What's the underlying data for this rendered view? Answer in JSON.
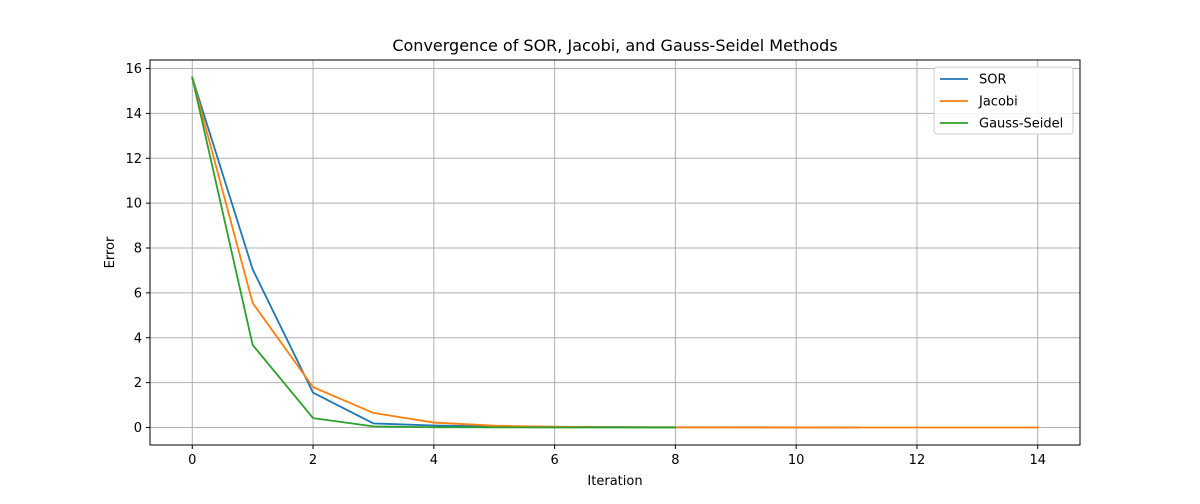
{
  "chart_data": {
    "type": "line",
    "title": "Convergence of SOR, Jacobi, and Gauss-Seidel Methods",
    "xlabel": "Iteration",
    "ylabel": "Error",
    "xlim": [
      -0.7,
      14.7
    ],
    "ylim": [
      -0.78,
      16.38
    ],
    "xticks": [
      0,
      2,
      4,
      6,
      8,
      10,
      12,
      14
    ],
    "yticks": [
      0,
      2,
      4,
      6,
      8,
      10,
      12,
      14,
      16
    ],
    "grid": true,
    "legend_position": "top-right",
    "series": [
      {
        "name": "SOR",
        "color": "#1f77b4",
        "x": [
          0,
          1,
          2,
          3,
          4,
          5,
          6,
          7,
          8,
          9,
          10,
          11
        ],
        "y": [
          15.6,
          7.05,
          1.55,
          0.18,
          0.09,
          0.05,
          0.03,
          0.02,
          0.01,
          0.01,
          0.005,
          0.003
        ]
      },
      {
        "name": "Jacobi",
        "color": "#ff7f0e",
        "x": [
          0,
          1,
          2,
          3,
          4,
          5,
          6,
          7,
          8,
          9,
          10,
          11,
          12,
          13,
          14
        ],
        "y": [
          15.6,
          5.55,
          1.8,
          0.65,
          0.22,
          0.08,
          0.03,
          0.01,
          0.005,
          0.003,
          0.002,
          0.001,
          0.001,
          0.0,
          0.0
        ]
      },
      {
        "name": "Gauss-Seidel",
        "color": "#2ca02c",
        "x": [
          0,
          1,
          2,
          3,
          4,
          5,
          6,
          7,
          8
        ],
        "y": [
          15.6,
          3.68,
          0.42,
          0.05,
          0.01,
          0.005,
          0.002,
          0.001,
          0.0
        ]
      }
    ]
  }
}
